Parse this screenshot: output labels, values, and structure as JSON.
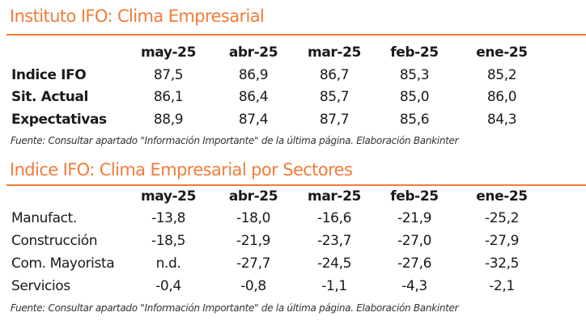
{
  "table1": {
    "title": "Instituto IFO: Clima Empresarial",
    "columns": [
      "may-25",
      "abr-25",
      "mar-25",
      "feb-25",
      "ene-25"
    ],
    "rows": [
      {
        "label": "Indice IFO",
        "values": [
          "87,5",
          "86,9",
          "86,7",
          "85,3",
          "85,2"
        ]
      },
      {
        "label": "Sit. Actual",
        "values": [
          "86,1",
          "86,4",
          "85,7",
          "85,0",
          "86,0"
        ]
      },
      {
        "label": "Expectativas",
        "values": [
          "88,9",
          "87,4",
          "87,7",
          "85,6",
          "84,3"
        ]
      }
    ],
    "source": "Fuente: Consultar apartado \"Información Importante\" de la última página. Elaboración Bankinter"
  },
  "table2": {
    "title": "Indice IFO: Clima Empresarial por Sectores",
    "columns": [
      "may-25",
      "abr-25",
      "mar-25",
      "feb-25",
      "ene-25"
    ],
    "rows": [
      {
        "label": "Manufact.",
        "values": [
          "-13,8",
          "-18,0",
          "-16,6",
          "-21,9",
          "-25,2"
        ]
      },
      {
        "label": "Construcción",
        "values": [
          "-18,5",
          "-21,9",
          "-23,7",
          "-27,0",
          "-27,9"
        ]
      },
      {
        "label": "Com. Mayorista",
        "values": [
          "n.d.",
          "-27,7",
          "-24,5",
          "-27,6",
          "-32,5"
        ]
      },
      {
        "label": "Servicios",
        "values": [
          "-0,4",
          "-0,8",
          "-1,1",
          "-4,3",
          "-2,1"
        ]
      }
    ],
    "source": "Fuente: Consultar apartado \"Información Importante\" de la última página. Elaboración Bankinter"
  },
  "colors": {
    "accent": "#f07c3a"
  }
}
